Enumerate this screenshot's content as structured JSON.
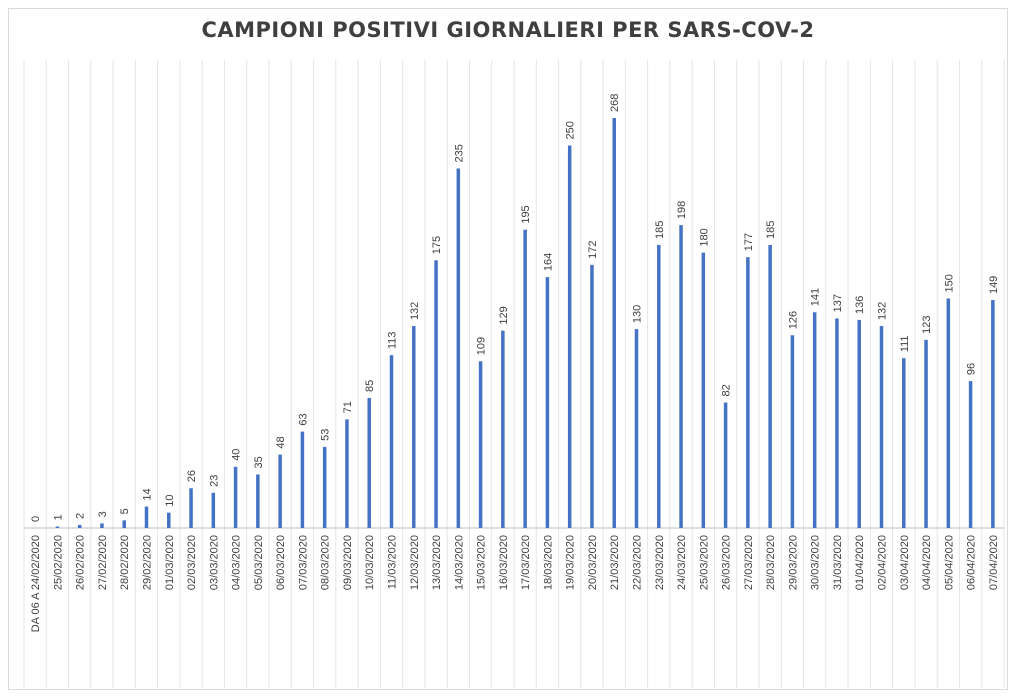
{
  "chart_data": {
    "type": "bar",
    "title": "CAMPIONI POSITIVI GIORNALIERI PER SARS-COV-2",
    "xlabel": "",
    "ylabel": "",
    "ylim": [
      0,
      280
    ],
    "grid": "vertical",
    "legend": "none",
    "bar_color": "#4472c4",
    "categories": [
      "DA 06 A 24/02/2020",
      "25/02/2020",
      "26/02/2020",
      "27/02/2020",
      "28/02/2020",
      "29/02/2020",
      "01/03/2020",
      "02/03/2020",
      "03/03/2020",
      "04/03/2020",
      "05/03/2020",
      "06/03/2020",
      "07/03/2020",
      "08/03/2020",
      "09/03/2020",
      "10/03/2020",
      "11/03/2020",
      "12/03/2020",
      "13/03/2020",
      "14/03/2020",
      "15/03/2020",
      "16/03/2020",
      "17/03/2020",
      "18/03/2020",
      "19/03/2020",
      "20/03/2020",
      "21/03/2020",
      "22/03/2020",
      "23/03/2020",
      "24/03/2020",
      "25/03/2020",
      "26/03/2020",
      "27/03/2020",
      "28/03/2020",
      "29/03/2020",
      "30/03/2020",
      "31/03/2020",
      "01/04/2020",
      "02/04/2020",
      "03/04/2020",
      "04/04/2020",
      "05/04/2020",
      "06/04/2020",
      "07/04/2020"
    ],
    "values": [
      0,
      1,
      2,
      3,
      5,
      14,
      10,
      26,
      23,
      40,
      35,
      48,
      63,
      53,
      71,
      85,
      113,
      132,
      175,
      235,
      109,
      129,
      195,
      164,
      250,
      172,
      268,
      130,
      185,
      198,
      180,
      82,
      177,
      185,
      126,
      141,
      137,
      136,
      132,
      111,
      123,
      150,
      96,
      149
    ]
  }
}
